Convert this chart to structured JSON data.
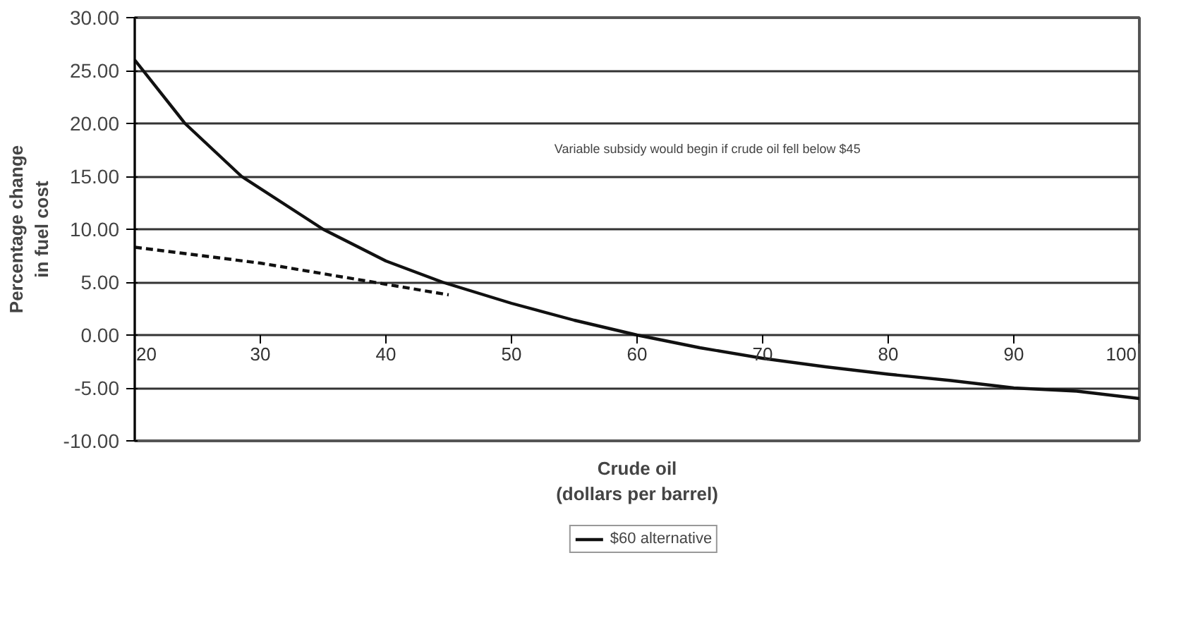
{
  "chart_data": {
    "type": "line",
    "xlabel": "Crude oil\n(dollars per barrel)",
    "ylabel": "Percentage change\nin fuel cost",
    "annotations": [
      "Variable subsidy would begin if crude oil fell below $45"
    ],
    "xlim": [
      20,
      100
    ],
    "xticks": [
      20,
      30,
      40,
      50,
      60,
      70,
      80,
      90,
      100
    ],
    "ylim": [
      -10,
      30
    ],
    "yticks": [
      {
        "value": -10,
        "label": "-10.00"
      },
      {
        "value": -5,
        "label": "-5.00"
      },
      {
        "value": 0,
        "label": "0.00"
      },
      {
        "value": 5,
        "label": "5.00"
      },
      {
        "value": 10,
        "label": "10.00"
      },
      {
        "value": 15,
        "label": "15.00"
      },
      {
        "value": 20,
        "label": "20.00"
      },
      {
        "value": 25,
        "label": "25.00"
      },
      {
        "value": 30,
        "label": "30.00"
      }
    ],
    "grid": "y",
    "legend": "bottom",
    "series": [
      {
        "name": "$60 alternative",
        "color": "#111111",
        "line_style": "solid",
        "x": [
          20,
          24,
          28.5,
          35,
          40,
          44.5,
          50,
          55,
          60,
          65,
          70,
          75,
          80,
          85,
          90,
          95,
          100
        ],
        "values": [
          26,
          20,
          15,
          10,
          7,
          5,
          3,
          1.4,
          0,
          -1.2,
          -2.2,
          -3,
          -3.7,
          -4.3,
          -5,
          -5.3,
          -6
        ]
      },
      {
        "color": "#111111",
        "line_style": "dashed",
        "x": [
          20,
          30,
          40,
          45
        ],
        "values": [
          8.3,
          6.8,
          4.8,
          3.8
        ]
      }
    ]
  }
}
